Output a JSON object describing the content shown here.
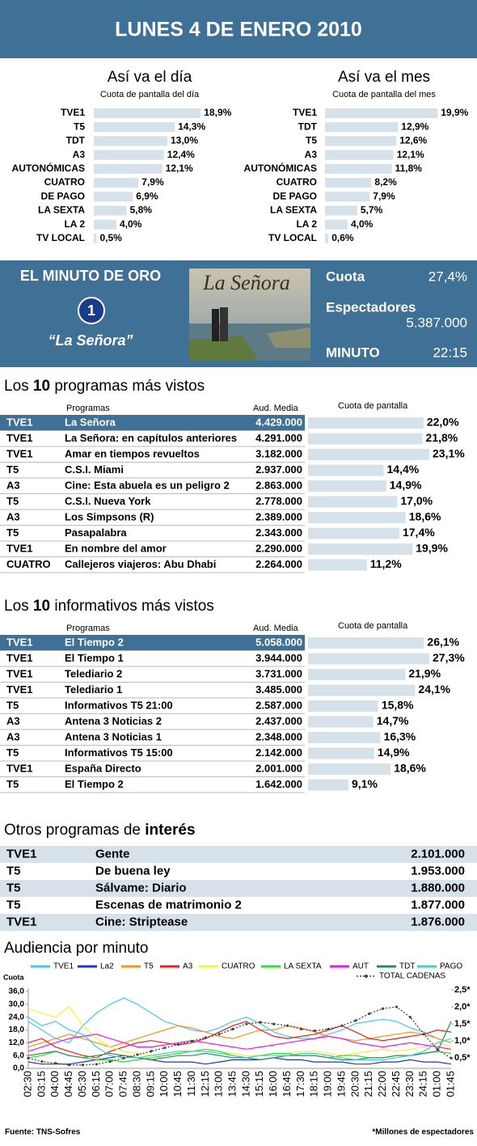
{
  "header": {
    "title": "LUNES 4 DE ENERO 2010"
  },
  "chart_data": [
    {
      "type": "hbar",
      "title": "Así va el día",
      "subtitle": "Cuota de pantalla del día",
      "categories": [
        "TVE1",
        "T5",
        "TDT",
        "A3",
        "AUTONÓMICAS",
        "CUATRO",
        "DE PAGO",
        "LA SEXTA",
        "LA 2",
        "TV LOCAL"
      ],
      "values": [
        18.9,
        14.3,
        13.0,
        12.4,
        12.1,
        7.9,
        6.9,
        5.8,
        4.0,
        0.5
      ],
      "value_labels": [
        "18,9%",
        "14,3%",
        "13,0%",
        "12,4%",
        "12,1%",
        "7,9%",
        "6,9%",
        "5,8%",
        "4,0%",
        "0,5%"
      ],
      "color": "#d6e1ea"
    },
    {
      "type": "hbar",
      "title": "Así va el mes",
      "subtitle": "Cuota de pantalla del mes",
      "categories": [
        "TVE1",
        "TDT",
        "T5",
        "A3",
        "AUTONÓMICAS",
        "CUATRO",
        "DE PAGO",
        "LA SEXTA",
        "LA 2",
        "TV LOCAL"
      ],
      "values": [
        19.9,
        12.9,
        12.6,
        12.1,
        11.8,
        8.2,
        7.9,
        5.7,
        4.0,
        0.6
      ],
      "value_labels": [
        "19,9%",
        "12,9%",
        "12,6%",
        "12,1%",
        "11,8%",
        "8,2%",
        "7,9%",
        "5,7%",
        "4,0%",
        "0,6%"
      ],
      "color": "#d6e1ea"
    },
    {
      "type": "line",
      "title": "Audiencia por minuto",
      "y_label": "Cuota",
      "x": [
        "02:30",
        "03:15",
        "04:00",
        "04:45",
        "05:30",
        "06:15",
        "07:00",
        "07:45",
        "08:30",
        "09:15",
        "10:00",
        "10:45",
        "11:30",
        "12:15",
        "13:00",
        "13:45",
        "14:30",
        "15:15",
        "16:00",
        "16:45",
        "17:30",
        "18:15",
        "19:00",
        "19:45",
        "20:30",
        "21:15",
        "22:00",
        "22:45",
        "23:30",
        "24:15",
        "01:00",
        "01:45"
      ],
      "ylim": [
        0,
        36
      ],
      "yticks": [
        {
          "value": 0,
          "label": "0,0"
        },
        {
          "value": 6,
          "label": "6,0"
        },
        {
          "value": 12,
          "label": "12,0"
        },
        {
          "value": 18,
          "label": "18,0"
        },
        {
          "value": 24,
          "label": "24,0"
        },
        {
          "value": 30,
          "label": "30,0"
        },
        {
          "value": 36,
          "label": "36,0"
        }
      ],
      "y2lim": [
        0.2,
        2.45
      ],
      "y2ticks": [
        {
          "value": 0.5,
          "label": "0,5*"
        },
        {
          "value": 1.0,
          "label": "1,0*"
        },
        {
          "value": 1.5,
          "label": "1,5*"
        },
        {
          "value": 2.0,
          "label": "2,0*"
        },
        {
          "value": 2.5,
          "label": "2,5*"
        }
      ],
      "series": [
        {
          "name": "TVE1",
          "color": "#4cc4f0",
          "values": [
            22,
            18,
            14,
            12,
            20,
            26,
            30,
            33,
            30,
            26,
            22,
            20,
            18,
            17,
            19,
            22,
            24,
            21,
            17,
            15,
            14,
            14,
            16,
            18,
            21,
            22,
            23,
            22,
            19,
            17,
            14,
            12
          ]
        },
        {
          "name": "La2",
          "color": "#1d35c8",
          "values": [
            3,
            2,
            2,
            2,
            3,
            4,
            5,
            6,
            5,
            4,
            3,
            3,
            3,
            2,
            3,
            4,
            4,
            4,
            5,
            4,
            4,
            3,
            3,
            3,
            2,
            2,
            3,
            3,
            4,
            3,
            3,
            2
          ]
        },
        {
          "name": "T5",
          "color": "#f7941d",
          "values": [
            10,
            12,
            14,
            16,
            14,
            12,
            10,
            12,
            14,
            16,
            18,
            20,
            19,
            17,
            15,
            14,
            16,
            18,
            18,
            20,
            19,
            17,
            15,
            14,
            13,
            14,
            15,
            16,
            17,
            16,
            14,
            12
          ]
        },
        {
          "name": "A3",
          "color": "#e2201c",
          "values": [
            12,
            14,
            10,
            8,
            6,
            5,
            8,
            10,
            12,
            13,
            12,
            11,
            12,
            14,
            17,
            20,
            22,
            18,
            15,
            14,
            15,
            16,
            18,
            20,
            17,
            14,
            13,
            14,
            15,
            16,
            18,
            17
          ]
        },
        {
          "name": "CUATRO",
          "color": "#f2f23a",
          "values": [
            28,
            26,
            24,
            29,
            20,
            14,
            10,
            8,
            7,
            6,
            6,
            7,
            8,
            9,
            8,
            7,
            6,
            6,
            7,
            7,
            8,
            8,
            7,
            6,
            7,
            8,
            9,
            8,
            9,
            10,
            12,
            10
          ]
        },
        {
          "name": "LA SEXTA",
          "color": "#35d935",
          "values": [
            5,
            6,
            8,
            6,
            5,
            4,
            4,
            3,
            4,
            5,
            6,
            7,
            8,
            9,
            8,
            6,
            5,
            6,
            7,
            7,
            6,
            6,
            5,
            6,
            6,
            5,
            5,
            6,
            6,
            7,
            8,
            7
          ]
        },
        {
          "name": "AUT",
          "color": "#e21ee2",
          "values": [
            8,
            10,
            12,
            14,
            15,
            16,
            14,
            12,
            10,
            10,
            11,
            12,
            13,
            12,
            11,
            10,
            9,
            10,
            11,
            12,
            13,
            14,
            15,
            14,
            12,
            11,
            10,
            11,
            12,
            11,
            10,
            9
          ]
        },
        {
          "name": "TDT",
          "color": "#2e8b57",
          "values": [
            6,
            7,
            8,
            6,
            5,
            6,
            7,
            6,
            5,
            4,
            5,
            6,
            6,
            7,
            6,
            5,
            5,
            4,
            5,
            6,
            6,
            6,
            5,
            4,
            4,
            5,
            5,
            6,
            6,
            7,
            8,
            22
          ]
        },
        {
          "name": "PAGO",
          "color": "#3fcfcf",
          "values": [
            24,
            20,
            22,
            18,
            16,
            10,
            6,
            5,
            5,
            6,
            7,
            8,
            8,
            8,
            7,
            6,
            5,
            6,
            6,
            6,
            7,
            7,
            6,
            5,
            4,
            4,
            4,
            5,
            6,
            8,
            12,
            14
          ]
        },
        {
          "name": "TOTAL CADENAS",
          "color": "#444444",
          "axis": "y2",
          "values": [
            0.5,
            0.4,
            0.35,
            0.3,
            0.3,
            0.32,
            0.4,
            0.5,
            0.6,
            0.7,
            0.8,
            0.9,
            1.0,
            1.1,
            1.2,
            1.35,
            1.5,
            1.55,
            1.5,
            1.45,
            1.35,
            1.3,
            1.35,
            1.45,
            1.6,
            1.8,
            1.95,
            2.0,
            1.7,
            1.2,
            0.75,
            0.5
          ]
        }
      ]
    }
  ],
  "minuto_oro": {
    "title": "EL MINUTO DE ORO",
    "logo": "1",
    "program": "“La Señora”",
    "poster_text": "La Señora",
    "cuota_label": "Cuota",
    "cuota": "27,4%",
    "espectadores_label": "Espectadores",
    "espectadores": "5.387.000",
    "minuto_label": "MINUTO",
    "minuto": "22:15"
  },
  "top_programs": {
    "title": [
      "Los ",
      "10",
      " programas más vistos"
    ],
    "columns": [
      "Programas",
      "Aud. Media",
      "Cuota de pantalla"
    ],
    "highlight_row": 0,
    "rows": [
      [
        "TVE1",
        "La Señora",
        "4.429.000"
      ],
      [
        "TVE1",
        "La Señora: en capítulos anteriores",
        "4.291.000"
      ],
      [
        "TVE1",
        "Amar en tiempos revueltos",
        "3.182.000"
      ],
      [
        "T5",
        "C.S.I. Miami",
        "2.937.000"
      ],
      [
        "A3",
        "Cine: Esta abuela es un peligro 2",
        "2.863.000"
      ],
      [
        "T5",
        "C.S.I. Nueva York",
        "2.778.000"
      ],
      [
        "A3",
        "Los Simpsons (R)",
        "2.389.000"
      ],
      [
        "T5",
        "Pasapalabra",
        "2.343.000"
      ],
      [
        "TVE1",
        "En nombre del amor",
        "2.290.000"
      ],
      [
        "CUATRO",
        "Callejeros viajeros: Abu Dhabi",
        "2.264.000"
      ]
    ],
    "share": {
      "values": [
        22.0,
        21.8,
        23.1,
        14.4,
        14.9,
        17.0,
        18.6,
        17.4,
        19.9,
        11.2
      ],
      "value_labels": [
        "22,0%",
        "21,8%",
        "23,1%",
        "14,4%",
        "14,9%",
        "17,0%",
        "18,6%",
        "17,4%",
        "19,9%",
        "11,2%"
      ],
      "color": "#d6e1ea"
    }
  },
  "top_news": {
    "title": [
      "Los ",
      "10",
      " informativos más vistos"
    ],
    "columns": [
      "Programas",
      "Aud. Media",
      "Cuota de pantalla"
    ],
    "highlight_row": 0,
    "rows": [
      [
        "TVE1",
        "El Tiempo 2",
        "5.058.000"
      ],
      [
        "TVE1",
        "El Tiempo 1",
        "3.944.000"
      ],
      [
        "TVE1",
        "Telediario 2",
        "3.731.000"
      ],
      [
        "TVE1",
        "Telediario 1",
        "3.485.000"
      ],
      [
        "T5",
        "Informativos T5 21:00",
        "2.587.000"
      ],
      [
        "A3",
        "Antena 3 Noticias 2",
        "2.437.000"
      ],
      [
        "A3",
        "Antena 3 Noticias 1",
        "2.348.000"
      ],
      [
        "T5",
        "Informativos T5 15:00",
        "2.142.000"
      ],
      [
        "TVE1",
        "España Directo",
        "2.001.000"
      ],
      [
        "T5",
        "El Tiempo 2",
        "1.642.000"
      ]
    ],
    "share": {
      "values": [
        26.1,
        27.3,
        21.9,
        24.1,
        15.8,
        14.7,
        16.3,
        14.9,
        18.6,
        9.1
      ],
      "value_labels": [
        "26,1%",
        "27,3%",
        "21,9%",
        "24,1%",
        "15,8%",
        "14,7%",
        "16,3%",
        "14,9%",
        "18,6%",
        "9,1%"
      ],
      "color": "#d6e1ea"
    }
  },
  "otros": {
    "title": [
      "Otros programas de ",
      "interés"
    ],
    "rows": [
      [
        "TVE1",
        "Gente",
        "2.101.000"
      ],
      [
        "T5",
        "De buena ley",
        "1.953.000"
      ],
      [
        "T5",
        "Sálvame: Diario",
        "1.880.000"
      ],
      [
        "T5",
        "Escenas de matrimonio 2",
        "1.877.000"
      ],
      [
        "TVE1",
        "Cine: Striptease",
        "1.876.000"
      ]
    ]
  },
  "footer": {
    "source": "Fuente: TNS-Sofres",
    "note": "*Millones de espectadores"
  }
}
